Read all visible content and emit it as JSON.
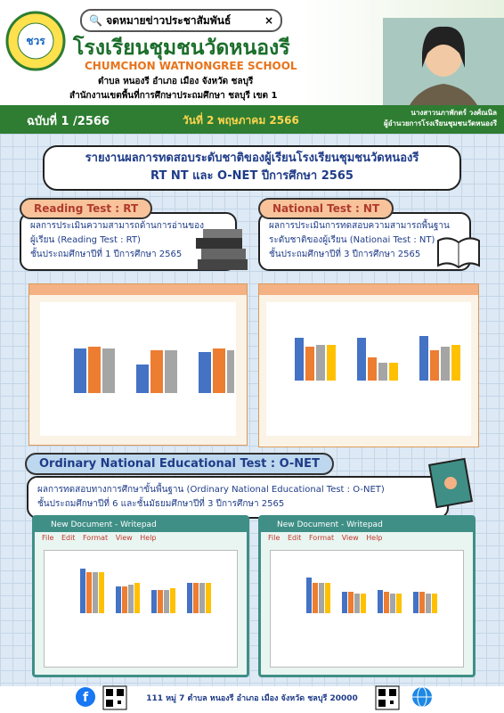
{
  "header": {
    "search": "จดหมายข่าวประชาสัมพันธ์",
    "school_name": "โรงเรียนชุมชนวัดหนองรี",
    "school_name_en": "CHUMCHON WATNONGREE SCHOOL",
    "address": "ตำบล หนองรี  อำเภอ เมือง  จังหวัด ชลบุรี",
    "office": "สำนักงานเขตพื้นที่การศึกษาประถมศึกษา ชลบุรี เขต 1",
    "issue": "ฉบับที่ 1 /2566",
    "date": "วันที่ 2 พฤษภาคม 2566",
    "director_name": "นางสาวนภาพักตร์ วงศ์ณนิล",
    "director_title": "ผู้อำนวยการโรงเรียนชุมชนวัดหนองรี"
  },
  "headline": {
    "line1": "รายงานผลการทดสอบระดับชาติของผู้เรียนโรงเรียนชุมชนวัดหนองรี",
    "line2": "RT NT และ O-NET ปีการศึกษา 2565"
  },
  "sections": [
    {
      "label": "Reading Test : RT",
      "lines": [
        "ผลการประเมินความสามารถด้านการอ่านของ",
        "ผู้เรียน (Reading Test : RT)",
        "ชั้นประถมศึกษาปีที่ 1 ปีการศึกษา 2565"
      ]
    },
    {
      "label": "National Test : NT",
      "lines": [
        "ผลการประเมินการทดสอบความสามารถพื้นฐาน",
        "ระดับชาติของผู้เรียน (Nationai Test : NT)",
        "ชั้นประถมศึกษาปีที่ 3 ปีการศึกษา 2565"
      ]
    },
    {
      "label": "Ordinary National Educational Test : O-NET",
      "lines": [
        "ผลการทดสอบทางการศึกษาขั้นพื้นฐาน (Ordinary National Educational Test : O-NET)",
        "ชั้นประถมศึกษาปีที่ 6 และชั้นมัธยมศึกษาปีที่ 3 ปีการศึกษา 2565"
      ]
    }
  ],
  "windows": {
    "title": "New Document - Writepad",
    "menu": [
      "File",
      "Edit",
      "Format",
      "View",
      "Help"
    ]
  },
  "footer": {
    "address": "111 หมู่ 7 ตำบล หนองรี อำเภอ เมือง จังหวัด ชลบุรี 20000"
  }
}
